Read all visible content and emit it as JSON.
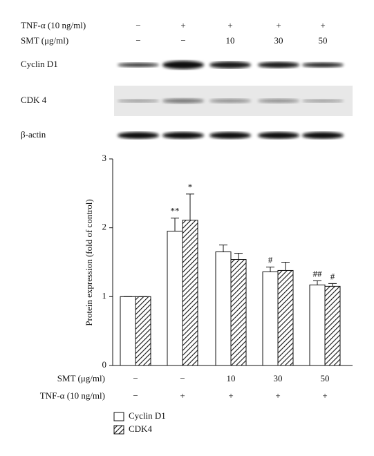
{
  "blot": {
    "conditions": [
      {
        "label": "TNF-α (10 ng/ml)",
        "values": [
          "−",
          "+",
          "+",
          "+",
          "+"
        ]
      },
      {
        "label": "SMT (μg/ml)",
        "values": [
          "−",
          "−",
          "10",
          "30",
          "50"
        ]
      }
    ],
    "bands": [
      "Cyclin D1",
      "CDK 4",
      "β-actin"
    ]
  },
  "chart_data": {
    "type": "bar",
    "y_label": "Protein expression (fold of control)",
    "ylim": [
      0,
      3
    ],
    "yticks": [
      0,
      1,
      2,
      3
    ],
    "conditions": [
      {
        "label": "SMT (μg/ml)",
        "values": [
          "−",
          "−",
          "10",
          "30",
          "50"
        ]
      },
      {
        "label": "TNF-α (10 ng/ml)",
        "values": [
          "−",
          "+",
          "+",
          "+",
          "+"
        ]
      }
    ],
    "series": [
      {
        "name": "Cyclin D1",
        "color": "#ffffff",
        "pattern": "solid",
        "values": [
          1.0,
          1.95,
          1.65,
          1.36,
          1.17
        ],
        "errors": [
          0,
          0.19,
          0.1,
          0.07,
          0.06
        ],
        "significance": [
          null,
          "**",
          null,
          "#",
          "##"
        ]
      },
      {
        "name": "CDK4",
        "color": "#ffffff",
        "pattern": "hatch",
        "values": [
          1.0,
          2.11,
          1.54,
          1.38,
          1.15
        ],
        "errors": [
          0,
          0.38,
          0.09,
          0.12,
          0.04
        ],
        "significance": [
          null,
          "*",
          null,
          null,
          "#"
        ]
      }
    ]
  }
}
